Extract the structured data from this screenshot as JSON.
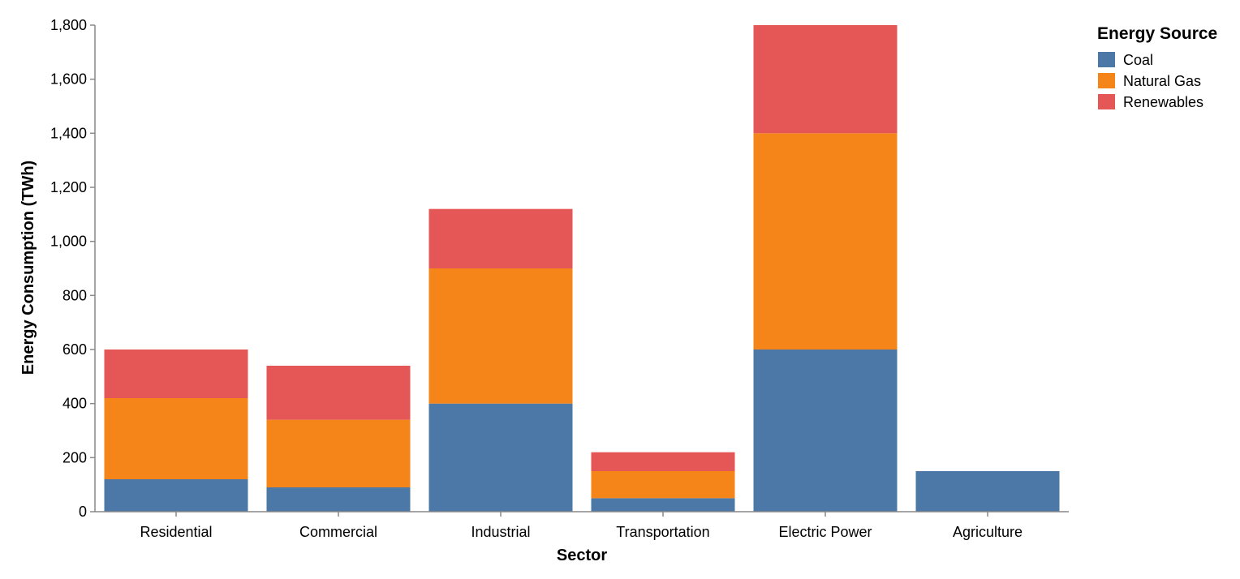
{
  "chart_data": {
    "type": "bar",
    "stacked": true,
    "title": "",
    "xlabel": "Sector",
    "ylabel": "Energy Consumption (TWh)",
    "ylim": [
      0,
      1800
    ],
    "yticks": [
      0,
      200,
      400,
      600,
      800,
      1000,
      1200,
      1400,
      1600,
      1800
    ],
    "ytick_labels": [
      "0",
      "200",
      "400",
      "600",
      "800",
      "1,000",
      "1,200",
      "1,400",
      "1,600",
      "1,800"
    ],
    "grid": false,
    "categories": [
      "Residential",
      "Commercial",
      "Industrial",
      "Transportation",
      "Electric Power",
      "Agriculture"
    ],
    "series": [
      {
        "name": "Coal",
        "color": "#4c78a8",
        "values": [
          120,
          90,
          400,
          50,
          600,
          150
        ]
      },
      {
        "name": "Natural Gas",
        "color": "#f58518",
        "values": [
          300,
          250,
          500,
          100,
          800,
          0
        ]
      },
      {
        "name": "Renewables",
        "color": "#e45756",
        "values": [
          180,
          200,
          220,
          70,
          400,
          0
        ]
      }
    ],
    "legend": {
      "title": "Energy Source",
      "position": "top-right"
    }
  }
}
